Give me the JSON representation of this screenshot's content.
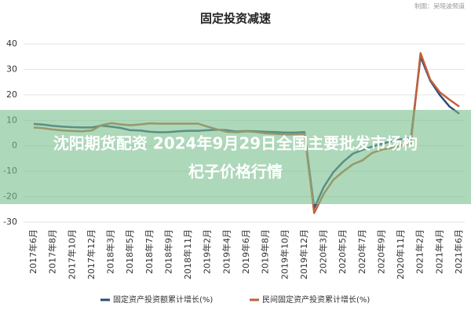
{
  "chart_data": {
    "type": "line",
    "title": "固定投资减速",
    "source": "制图：吴晓波频道",
    "categories": [
      "2017年6月",
      null,
      "2017年8月",
      null,
      "2017年10月",
      null,
      "2017年12月",
      null,
      "2018年3月",
      null,
      "2018年5月",
      null,
      "2018年7月",
      null,
      "2018年9月",
      null,
      "2018年11月",
      null,
      "2019年2月",
      null,
      "2019年4月",
      null,
      "2019年6月",
      null,
      "2019年8月",
      null,
      "2019年10月",
      null,
      "2019年12月",
      null,
      "2020年3月",
      null,
      "2020年5月",
      null,
      "2020年7月",
      null,
      "2020年9月",
      null,
      "2020年11月",
      null,
      "2021年2月",
      null,
      "2021年4月",
      null,
      "2021年6月"
    ],
    "series": [
      {
        "name": "固定资产投资额累计增长(%)",
        "color": "#2e4a7a",
        "values": [
          8.6,
          8.3,
          7.8,
          7.5,
          7.3,
          7.2,
          7.2,
          7.9,
          7.5,
          7.0,
          6.1,
          6.0,
          5.5,
          5.3,
          5.4,
          5.7,
          5.9,
          5.9,
          6.1,
          6.3,
          6.1,
          5.6,
          5.8,
          5.7,
          5.5,
          5.4,
          5.2,
          5.2,
          5.4,
          -24.5,
          -16.1,
          -10.3,
          -6.3,
          -3.1,
          -1.6,
          -0.3,
          0.8,
          1.8,
          2.6,
          2.9,
          35.0,
          25.6,
          19.9,
          15.4,
          12.6
        ]
      },
      {
        "name": "民间固定资产投资累计增长(%)",
        "color": "#c0623a",
        "values": [
          7.2,
          6.9,
          6.4,
          6.0,
          5.8,
          5.7,
          6.0,
          8.1,
          8.9,
          8.4,
          8.1,
          8.4,
          8.8,
          8.7,
          8.7,
          8.7,
          8.7,
          8.7,
          7.5,
          6.4,
          5.5,
          5.3,
          5.7,
          5.4,
          4.9,
          4.7,
          4.4,
          4.5,
          4.7,
          -26.4,
          -18.8,
          -13.3,
          -10.1,
          -7.3,
          -5.7,
          -2.8,
          -1.5,
          -0.7,
          0.0,
          1.0,
          36.4,
          26.0,
          21.0,
          18.1,
          15.4
        ]
      }
    ],
    "ylim": [
      -30,
      40
    ],
    "yticks": [
      -30,
      -20,
      -10,
      0,
      10,
      20,
      30,
      40
    ],
    "grid": true,
    "legend": "bottom"
  },
  "banner_text": [
    "沈阳期货配资 2024年9月29日全国主要批发市场枸",
    "杞子价格行情"
  ]
}
